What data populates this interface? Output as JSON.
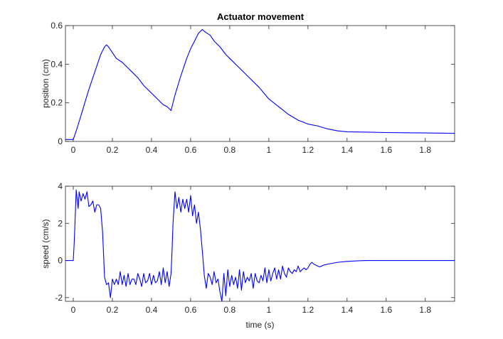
{
  "chart_data": [
    {
      "type": "line",
      "title": "Actuator movement",
      "xlabel": "",
      "ylabel": "position (cm)",
      "xlim": [
        -0.04,
        1.95
      ],
      "ylim": [
        0,
        0.6
      ],
      "xticks": [
        0,
        0.2,
        0.4,
        0.6,
        0.8,
        1,
        1.2,
        1.4,
        1.6,
        1.8
      ],
      "xtick_labels": [
        "0",
        "0.2",
        "0.4",
        "0.6",
        "0.8",
        "1",
        "1.2",
        "1.4",
        "1.6",
        "1.8"
      ],
      "yticks": [
        0,
        0.2,
        0.4,
        0.6
      ],
      "ytick_labels": [
        "0",
        "0.2",
        "0.4",
        "0.6"
      ],
      "grid": false,
      "color": "#0000ff",
      "series": [
        {
          "x": [
            -0.04,
            0,
            0.02,
            0.05,
            0.08,
            0.1,
            0.12,
            0.14,
            0.16,
            0.17,
            0.18,
            0.2,
            0.22,
            0.25,
            0.28,
            0.3,
            0.33,
            0.36,
            0.4,
            0.43,
            0.46,
            0.48,
            0.5,
            0.52,
            0.55,
            0.58,
            0.6,
            0.62,
            0.64,
            0.66,
            0.67,
            0.7,
            0.72,
            0.75,
            0.78,
            0.8,
            0.83,
            0.86,
            0.9,
            0.95,
            1.0,
            1.05,
            1.1,
            1.15,
            1.2,
            1.25,
            1.3,
            1.35,
            1.4,
            1.5,
            1.6,
            1.7,
            1.8,
            1.95
          ],
          "y": [
            0.01,
            0.01,
            0.07,
            0.17,
            0.27,
            0.33,
            0.39,
            0.45,
            0.49,
            0.5,
            0.49,
            0.46,
            0.43,
            0.41,
            0.38,
            0.36,
            0.33,
            0.29,
            0.25,
            0.22,
            0.19,
            0.18,
            0.16,
            0.24,
            0.34,
            0.43,
            0.48,
            0.52,
            0.56,
            0.58,
            0.57,
            0.55,
            0.52,
            0.49,
            0.45,
            0.43,
            0.4,
            0.37,
            0.33,
            0.28,
            0.22,
            0.18,
            0.14,
            0.11,
            0.09,
            0.08,
            0.065,
            0.055,
            0.05,
            0.048,
            0.046,
            0.045,
            0.044,
            0.042
          ]
        }
      ]
    },
    {
      "type": "line",
      "title": "",
      "xlabel": "time (s)",
      "ylabel": "speed (cm/s)",
      "xlim": [
        -0.04,
        1.95
      ],
      "ylim": [
        -2.2,
        4
      ],
      "xticks": [
        0,
        0.2,
        0.4,
        0.6,
        0.8,
        1,
        1.2,
        1.4,
        1.6,
        1.8
      ],
      "xtick_labels": [
        "0",
        "0.2",
        "0.4",
        "0.6",
        "0.8",
        "1",
        "1.2",
        "1.4",
        "1.6",
        "1.8"
      ],
      "yticks": [
        -2,
        0,
        2,
        4
      ],
      "ytick_labels": [
        "-2",
        "0",
        "2",
        "4"
      ],
      "grid": false,
      "color": "#0000ff",
      "series": [
        {
          "x": [
            -0.04,
            0,
            0.005,
            0.015,
            0.025,
            0.03,
            0.04,
            0.05,
            0.06,
            0.07,
            0.08,
            0.09,
            0.1,
            0.11,
            0.12,
            0.13,
            0.14,
            0.15,
            0.16,
            0.17,
            0.18,
            0.19,
            0.2,
            0.21,
            0.22,
            0.23,
            0.24,
            0.25,
            0.26,
            0.27,
            0.28,
            0.29,
            0.3,
            0.31,
            0.32,
            0.33,
            0.34,
            0.35,
            0.36,
            0.37,
            0.38,
            0.39,
            0.4,
            0.41,
            0.42,
            0.43,
            0.44,
            0.45,
            0.46,
            0.47,
            0.48,
            0.49,
            0.5,
            0.505,
            0.51,
            0.52,
            0.53,
            0.54,
            0.55,
            0.56,
            0.57,
            0.58,
            0.59,
            0.6,
            0.61,
            0.62,
            0.63,
            0.64,
            0.65,
            0.66,
            0.67,
            0.68,
            0.69,
            0.7,
            0.71,
            0.72,
            0.73,
            0.74,
            0.75,
            0.76,
            0.77,
            0.78,
            0.79,
            0.8,
            0.81,
            0.82,
            0.83,
            0.84,
            0.85,
            0.86,
            0.87,
            0.88,
            0.89,
            0.9,
            0.91,
            0.92,
            0.93,
            0.94,
            0.95,
            0.96,
            0.97,
            0.98,
            0.99,
            1.0,
            1.01,
            1.02,
            1.03,
            1.04,
            1.05,
            1.06,
            1.07,
            1.08,
            1.09,
            1.1,
            1.11,
            1.12,
            1.13,
            1.14,
            1.15,
            1.16,
            1.17,
            1.18,
            1.19,
            1.2,
            1.21,
            1.22,
            1.23,
            1.24,
            1.25,
            1.26,
            1.28,
            1.3,
            1.35,
            1.4,
            1.45,
            1.5,
            1.6,
            1.7,
            1.8,
            1.9,
            1.95
          ],
          "y": [
            0,
            0,
            1.0,
            3.8,
            2.8,
            3.7,
            3.2,
            3.6,
            3.3,
            3.7,
            2.9,
            3.0,
            3.2,
            2.6,
            3.0,
            3.0,
            2.8,
            1.5,
            -0.9,
            -1.3,
            -1.2,
            -2.0,
            -1.0,
            -1.3,
            -1.0,
            -1.3,
            -0.6,
            -1.3,
            -0.8,
            -1.4,
            -0.7,
            -1.3,
            -1.0,
            -1.0,
            -1.3,
            -0.7,
            -1.0,
            -1.4,
            -0.7,
            -1.2,
            -1.1,
            -0.7,
            -1.3,
            -0.8,
            -1.2,
            -1.1,
            -0.6,
            -1.3,
            -0.4,
            -1.2,
            -0.6,
            -1.4,
            -0.7,
            0.5,
            2.0,
            3.7,
            2.8,
            3.4,
            2.6,
            3.3,
            2.8,
            3.3,
            2.6,
            3.5,
            2.4,
            3.0,
            2.0,
            2.6,
            1.7,
            0.5,
            -0.8,
            -1.5,
            -0.7,
            -0.9,
            -1.3,
            -0.6,
            -1.2,
            -1.0,
            -1.7,
            -2.2,
            -0.7,
            -1.9,
            -0.5,
            -1.4,
            -0.8,
            -1.3,
            -0.9,
            -1.5,
            -0.5,
            -1.6,
            -0.6,
            -1.2,
            -0.9,
            -1.1,
            -0.7,
            -1.5,
            -0.7,
            -1.1,
            -1.2,
            -0.8,
            -1.1,
            -0.4,
            -1.2,
            -0.5,
            -1.1,
            -0.7,
            -0.4,
            -1.0,
            -0.5,
            -1.0,
            -0.3,
            -0.7,
            -0.9,
            -0.4,
            -0.6,
            -0.7,
            -0.5,
            -0.6,
            -0.3,
            -0.6,
            -0.5,
            -0.4,
            -0.5,
            -0.4,
            -0.2,
            -0.1,
            -0.2,
            -0.25,
            -0.3,
            -0.35,
            -0.25,
            -0.2,
            -0.1,
            -0.05,
            -0.02,
            0.0,
            0.0,
            0.0,
            0.0,
            0.0,
            0.0
          ]
        }
      ]
    }
  ]
}
